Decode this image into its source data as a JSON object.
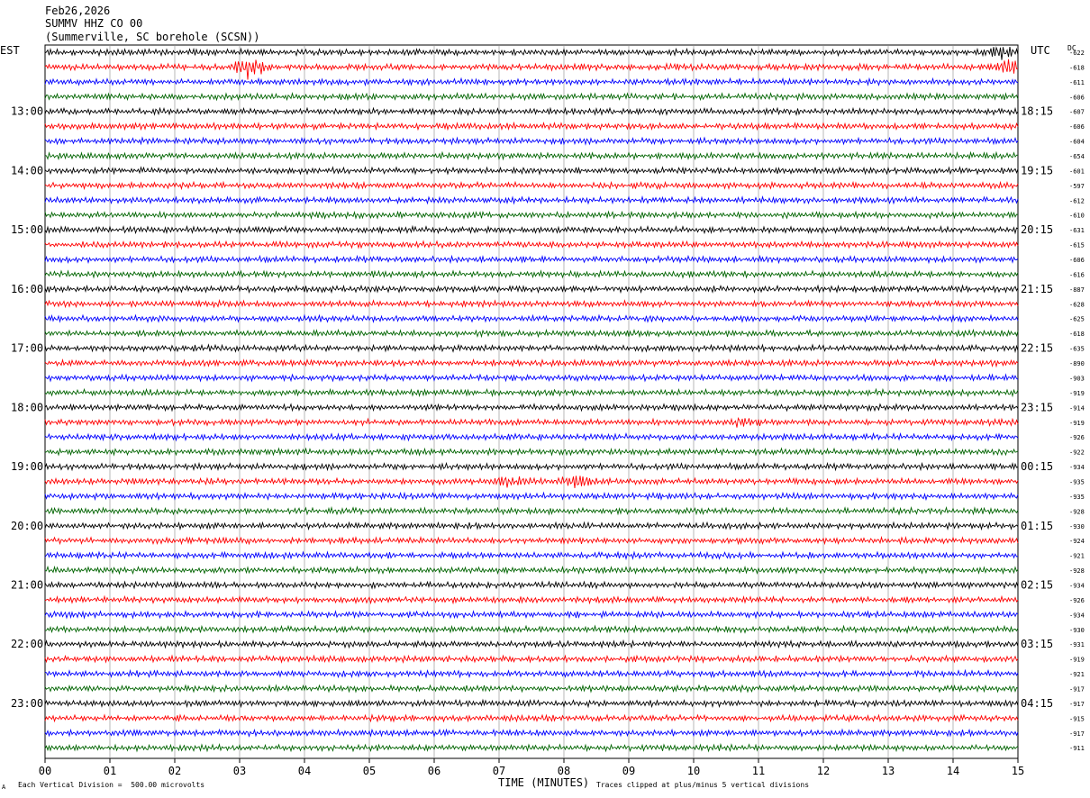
{
  "header": {
    "date": "Feb26,2026",
    "station": "SUMMV HHZ CO 00",
    "location": "(Summerville, SC borehole (SCSN))"
  },
  "labels": {
    "left_tz": "EST",
    "right_tz": "UTC",
    "dc": "DC",
    "scale_note": "Each Vertical Division =  500.00 microvolts",
    "clip_note": "Traces clipped at plus/minus 5 vertical divisions",
    "corner_mark": "A"
  },
  "chart_data": {
    "type": "line",
    "title": "",
    "xlabel": "TIME (MINUTES)",
    "ylabel": "",
    "x_ticks": [
      "00",
      "01",
      "02",
      "03",
      "04",
      "05",
      "06",
      "07",
      "08",
      "09",
      "10",
      "11",
      "12",
      "13",
      "14",
      "15"
    ],
    "xlim": [
      0,
      15
    ],
    "trace_count": 48,
    "trace_colors": [
      "#000000",
      "#ff0000",
      "#0000ff",
      "#006400"
    ],
    "left_time_labels": [
      "13:00",
      "14:00",
      "15:00",
      "16:00",
      "17:00",
      "18:00",
      "19:00",
      "20:00",
      "21:00",
      "22:00",
      "23:00"
    ],
    "right_time_labels": [
      "18:15",
      "19:15",
      "20:15",
      "21:15",
      "22:15",
      "23:15",
      "00:15",
      "01:15",
      "02:15",
      "03:15",
      "04:15"
    ],
    "dc_offsets": [
      "-622",
      "-618",
      "-611",
      "-606",
      "-607",
      "-606",
      "-604",
      "-654",
      "-601",
      "-597",
      "-612",
      "-610",
      "-631",
      "-615",
      "-606",
      "-616",
      "-887",
      "-628",
      "-625",
      "-618",
      "-635",
      "-890",
      "-903",
      "-919",
      "-914",
      "-919",
      "-926",
      "-922",
      "-934",
      "-935",
      "-935",
      "-928",
      "-930",
      "-924",
      "-921",
      "-928",
      "-934",
      "-926",
      "-934",
      "-930",
      "-931",
      "-919",
      "-921",
      "-917",
      "-917",
      "-915",
      "-917",
      "-911"
    ],
    "events": [
      {
        "trace": 1,
        "minute": 3.15,
        "amplitude_divisions": 2.4
      },
      {
        "trace": 1,
        "minute": 14.85,
        "amplitude_divisions": 1.5
      },
      {
        "trace": 0,
        "minute": 14.75,
        "amplitude_divisions": 1.2
      },
      {
        "trace": 25,
        "minute": 10.8,
        "amplitude_divisions": 0.9
      },
      {
        "trace": 29,
        "minute": 8.2,
        "amplitude_divisions": 1.2
      },
      {
        "trace": 29,
        "minute": 7.2,
        "amplitude_divisions": 1.0
      }
    ],
    "noise_amplitude_divisions": 0.6,
    "grid": true
  }
}
